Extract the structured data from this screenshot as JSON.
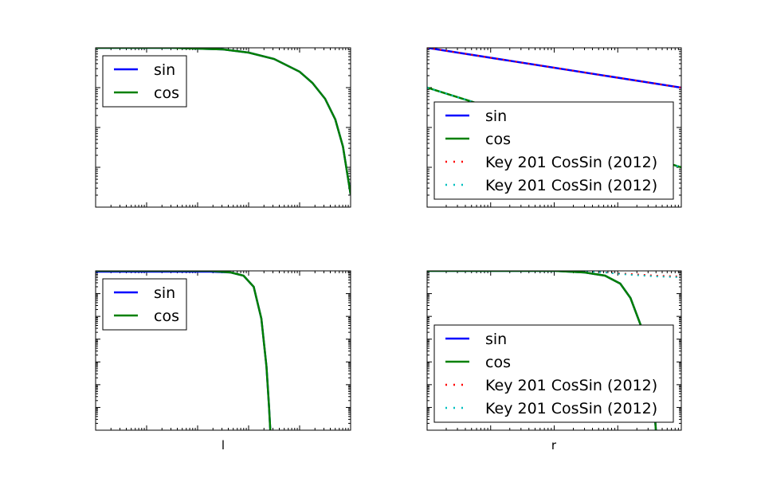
{
  "colors": {
    "sin": "#0000ff",
    "cos": "#008000",
    "key_red": "#ff0000",
    "key_cyan": "#00bfbf"
  },
  "chart_data": [
    {
      "type": "line",
      "xscale": "log",
      "yscale": "log",
      "grid": false,
      "legend": "upper-left",
      "xlabel": "",
      "series": [
        {
          "name": "sin",
          "color": "#0000ff",
          "style": "solid"
        },
        {
          "name": "cos",
          "color": "#008000",
          "style": "solid"
        }
      ],
      "curves": [
        {
          "color": "#0000ff",
          "style": "solid",
          "width": 2.5,
          "points": [
            [
              0,
              1
            ],
            [
              0.3,
              1
            ],
            [
              0.5,
              0.99
            ],
            [
              0.6,
              0.97
            ],
            [
              0.7,
              0.93
            ],
            [
              0.8,
              0.85
            ],
            [
              0.85,
              0.78
            ],
            [
              0.9,
              0.68
            ],
            [
              0.94,
              0.55
            ],
            [
              0.97,
              0.38
            ],
            [
              1.0,
              0.08
            ]
          ]
        },
        {
          "color": "#008000",
          "style": "solid",
          "width": 2.5,
          "points": [
            [
              0,
              1
            ],
            [
              0.3,
              1
            ],
            [
              0.5,
              0.99
            ],
            [
              0.6,
              0.97
            ],
            [
              0.7,
              0.93
            ],
            [
              0.8,
              0.85
            ],
            [
              0.85,
              0.78
            ],
            [
              0.9,
              0.68
            ],
            [
              0.94,
              0.55
            ],
            [
              0.97,
              0.38
            ],
            [
              1.0,
              0.08
            ]
          ]
        }
      ]
    },
    {
      "type": "line",
      "xscale": "log",
      "yscale": "log",
      "grid": false,
      "legend": "lower-center",
      "xlabel": "",
      "series": [
        {
          "name": "sin",
          "color": "#0000ff",
          "style": "solid"
        },
        {
          "name": "cos",
          "color": "#008000",
          "style": "solid"
        },
        {
          "name": "Key 201 CosSin (2012)",
          "color": "#ff0000",
          "style": "dotted"
        },
        {
          "name": "Key 201 CosSin (2012)",
          "color": "#00bfbf",
          "style": "dotted"
        }
      ],
      "curves": [
        {
          "color": "#0000ff",
          "style": "solid",
          "width": 2.5,
          "points": [
            [
              0,
              1
            ],
            [
              1,
              0.75
            ]
          ]
        },
        {
          "color": "#ff0000",
          "style": "dotted",
          "width": 2,
          "points": [
            [
              0,
              1
            ],
            [
              1,
              0.75
            ]
          ]
        },
        {
          "color": "#008000",
          "style": "solid",
          "width": 2.5,
          "points": [
            [
              0,
              0.75
            ],
            [
              1,
              0.25
            ]
          ]
        },
        {
          "color": "#00bfbf",
          "style": "dotted",
          "width": 2,
          "points": [
            [
              0,
              0.75
            ],
            [
              1,
              0.25
            ]
          ]
        }
      ]
    },
    {
      "type": "line",
      "xscale": "log",
      "yscale": "log",
      "grid": false,
      "legend": "upper-left",
      "xlabel": "l",
      "series": [
        {
          "name": "sin",
          "color": "#0000ff",
          "style": "solid"
        },
        {
          "name": "cos",
          "color": "#008000",
          "style": "solid"
        }
      ],
      "curves": [
        {
          "color": "#0000ff",
          "style": "solid",
          "width": 2.5,
          "points": [
            [
              0,
              0.995
            ],
            [
              0.45,
              0.995
            ],
            [
              0.53,
              0.99
            ],
            [
              0.58,
              0.97
            ],
            [
              0.62,
              0.9
            ],
            [
              0.65,
              0.7
            ],
            [
              0.67,
              0.4
            ],
            [
              0.68,
              0.15
            ],
            [
              0.685,
              0
            ]
          ]
        },
        {
          "color": "#008000",
          "style": "solid",
          "width": 2.5,
          "points": [
            [
              0,
              1
            ],
            [
              0.45,
              1
            ],
            [
              0.53,
              0.99
            ],
            [
              0.58,
              0.97
            ],
            [
              0.62,
              0.9
            ],
            [
              0.65,
              0.7
            ],
            [
              0.67,
              0.4
            ],
            [
              0.68,
              0.15
            ],
            [
              0.685,
              0
            ]
          ]
        }
      ]
    },
    {
      "type": "line",
      "xscale": "log",
      "yscale": "log",
      "grid": false,
      "legend": "lower-center",
      "xlabel": "r",
      "series": [
        {
          "name": "sin",
          "color": "#0000ff",
          "style": "solid"
        },
        {
          "name": "cos",
          "color": "#008000",
          "style": "solid"
        },
        {
          "name": "Key 201 CosSin (2012)",
          "color": "#ff0000",
          "style": "dotted"
        },
        {
          "name": "Key 201 CosSin (2012)",
          "color": "#00bfbf",
          "style": "dotted"
        }
      ],
      "curves": [
        {
          "color": "#ff0000",
          "style": "dotted",
          "width": 2,
          "points": [
            [
              0,
              1
            ],
            [
              0.6,
              1
            ],
            [
              0.7,
              0.99
            ],
            [
              0.8,
              0.98
            ],
            [
              0.9,
              0.97
            ],
            [
              1.0,
              0.965
            ]
          ]
        },
        {
          "color": "#00bfbf",
          "style": "dotted",
          "width": 2,
          "points": [
            [
              0,
              1
            ],
            [
              0.6,
              1
            ],
            [
              0.7,
              0.99
            ],
            [
              0.8,
              0.975
            ],
            [
              0.9,
              0.965
            ],
            [
              1.0,
              0.96
            ]
          ]
        },
        {
          "color": "#0000ff",
          "style": "solid",
          "width": 2.5,
          "points": [
            [
              0,
              1
            ],
            [
              0.5,
              1
            ],
            [
              0.62,
              0.99
            ],
            [
              0.7,
              0.97
            ],
            [
              0.76,
              0.92
            ],
            [
              0.8,
              0.83
            ],
            [
              0.84,
              0.66
            ],
            [
              0.87,
              0.45
            ],
            [
              0.89,
              0.22
            ],
            [
              0.9,
              0
            ]
          ]
        },
        {
          "color": "#008000",
          "style": "solid",
          "width": 2.5,
          "points": [
            [
              0,
              1
            ],
            [
              0.5,
              1
            ],
            [
              0.62,
              0.99
            ],
            [
              0.7,
              0.97
            ],
            [
              0.76,
              0.92
            ],
            [
              0.8,
              0.83
            ],
            [
              0.84,
              0.66
            ],
            [
              0.87,
              0.45
            ],
            [
              0.89,
              0.22
            ],
            [
              0.9,
              0
            ]
          ]
        }
      ]
    }
  ]
}
